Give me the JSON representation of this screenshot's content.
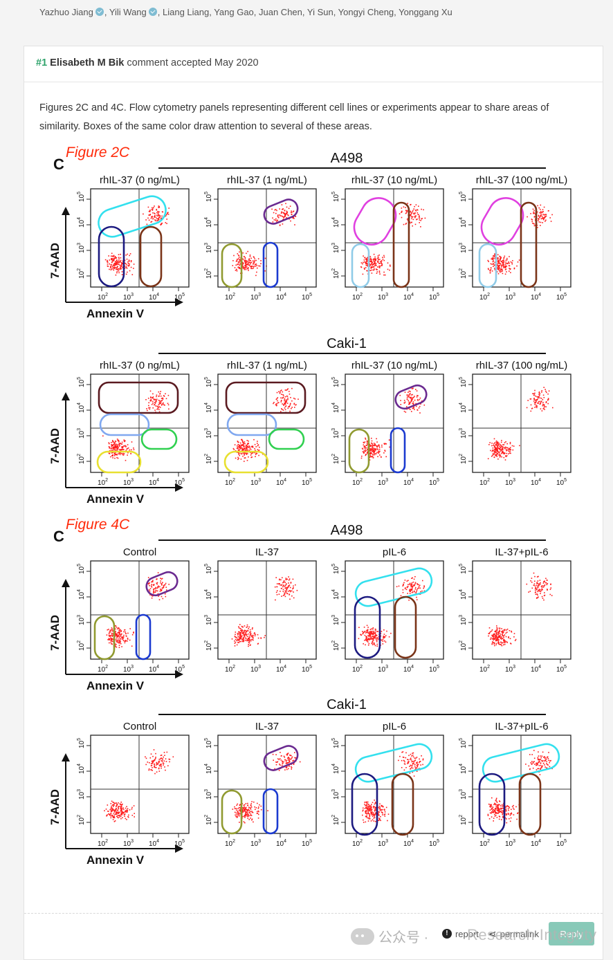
{
  "header": {
    "authors_parts": [
      "Yazhuo Jiang",
      ", Yili Wang",
      ", Liang Liang, Yang Gao, Juan Chen, Yi Sun, Yongyi Cheng, Yonggang Xu"
    ]
  },
  "comment": {
    "number": "#1",
    "author": "Elisabeth M Bik",
    "status": "comment accepted May 2020",
    "body": "Figures 2C and 4C. Flow cytometry panels representing different cell lines or experiments appear to share areas of similarity. Boxes of the same color draw attention to several of these areas."
  },
  "figure": {
    "sections": [
      {
        "tag": "Figure 2C",
        "letter": "C",
        "title": "A498",
        "labels": [
          "rhIL-37 (0 ng/mL)",
          "rhIL-37 (1 ng/mL)",
          "rhIL-37 (10 ng/mL)",
          "rhIL-37 (100 ng/mL)"
        ]
      },
      {
        "tag": "",
        "letter": "",
        "title": "Caki-1",
        "labels": [
          "rhIL-37 (0 ng/mL)",
          "rhIL-37 (1 ng/mL)",
          "rhIL-37 (10 ng/mL)",
          "rhIL-37 (100 ng/mL)"
        ]
      },
      {
        "tag": "Figure 4C",
        "letter": "C",
        "title": "A498",
        "labels": [
          "Control",
          "IL-37",
          "pIL-6",
          "IL-37+pIL-6"
        ]
      },
      {
        "tag": "",
        "letter": "",
        "title": "Caki-1",
        "labels": [
          "Control",
          "IL-37",
          "pIL-6",
          "IL-37+pIL-6"
        ]
      }
    ],
    "y_axis_label": "7-AAD",
    "x_axis_label": "Annexin V",
    "tick_exponents": [
      "2",
      "3",
      "4",
      "5"
    ],
    "tick_base": "10"
  },
  "footer": {
    "report": "report",
    "permalink": "permalink",
    "reply": "Reply"
  },
  "watermark": {
    "cn": "公众号 · ",
    "en": "Research Integrity"
  },
  "colors": {
    "accent": "#2fa36b",
    "dots": "#ff1a1a",
    "figure_tag": "#ff2a0a",
    "boxes": [
      "#33e0ee",
      "#1c1a80",
      "#7a3418",
      "#6a2a90",
      "#909a30",
      "#1b3ad0",
      "#e040e0",
      "#8fcbe8",
      "#5a1a20",
      "#80a8f0",
      "#30d050",
      "#e8e030"
    ]
  }
}
